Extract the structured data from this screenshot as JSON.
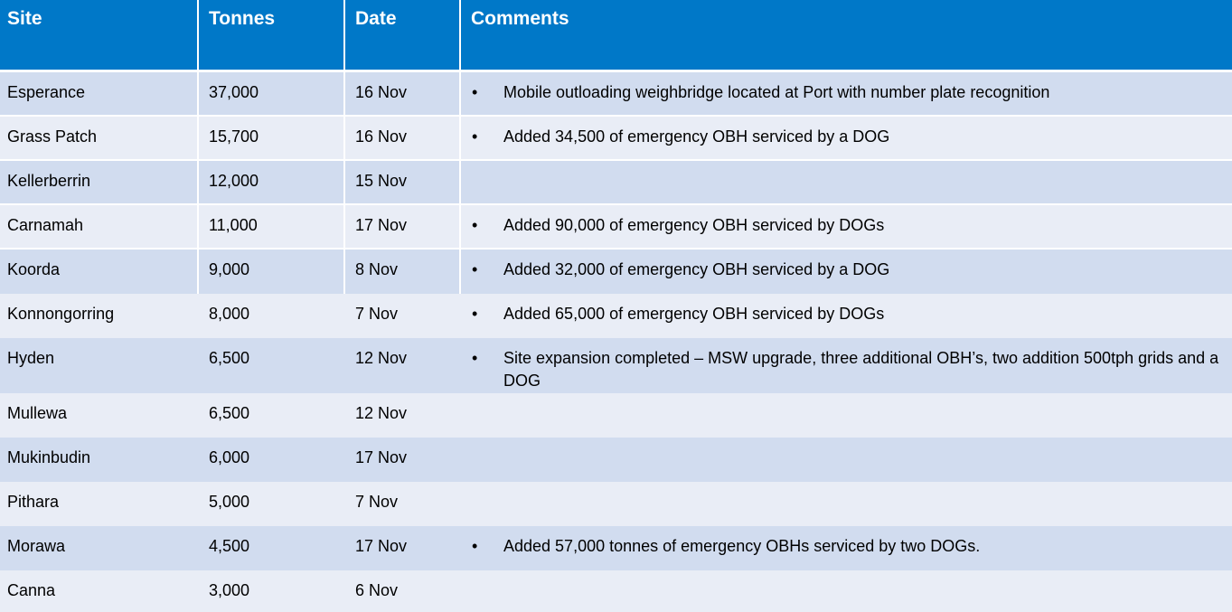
{
  "table": {
    "headers": [
      "Site",
      "Tonnes",
      "Date",
      "Comments"
    ],
    "bullet_glyph": "•",
    "rows": [
      {
        "site": "Esperance",
        "tonnes": "37,000",
        "date": "16 Nov",
        "comment": "Mobile outloading weighbridge located at Port with number plate recognition"
      },
      {
        "site": "Grass Patch",
        "tonnes": "15,700",
        "date": "16 Nov",
        "comment": "Added 34,500 of emergency OBH serviced by a DOG"
      },
      {
        "site": "Kellerberrin",
        "tonnes": "12,000",
        "date": "15 Nov",
        "comment": ""
      },
      {
        "site": "Carnamah",
        "tonnes": "11,000",
        "date": "17 Nov",
        "comment": "Added 90,000 of emergency OBH serviced by DOGs"
      },
      {
        "site": "Koorda",
        "tonnes": "9,000",
        "date": "8 Nov",
        "comment": "Added 32,000 of emergency OBH serviced by a DOG"
      },
      {
        "site": "Konnongorring",
        "tonnes": "8,000",
        "date": "7 Nov",
        "comment": "Added 65,000 of emergency OBH serviced by DOGs"
      },
      {
        "site": "Hyden",
        "tonnes": "6,500",
        "date": "12 Nov",
        "comment": "Site expansion completed – MSW upgrade, three additional OBH’s, two addition 500tph grids and a DOG"
      },
      {
        "site": "Mullewa",
        "tonnes": "6,500",
        "date": "12 Nov",
        "comment": ""
      },
      {
        "site": "Mukinbudin",
        "tonnes": "6,000",
        "date": "17 Nov",
        "comment": ""
      },
      {
        "site": "Pithara",
        "tonnes": "5,000",
        "date": "7 Nov",
        "comment": ""
      },
      {
        "site": "Morawa",
        "tonnes": "4,500",
        "date": "17 Nov",
        "comment": "Added 57,000 tonnes of emergency OBHs serviced by two DOGs."
      },
      {
        "site": "Canna",
        "tonnes": "3,000",
        "date": "6 Nov",
        "comment": ""
      }
    ]
  }
}
